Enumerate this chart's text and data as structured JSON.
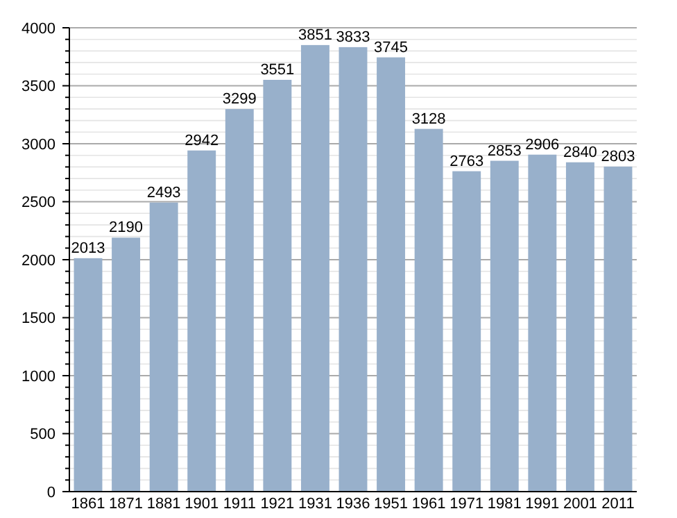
{
  "chart_data": {
    "type": "bar",
    "categories": [
      "1861",
      "1871",
      "1881",
      "1901",
      "1911",
      "1921",
      "1931",
      "1936",
      "1951",
      "1961",
      "1971",
      "1981",
      "1991",
      "2001",
      "2011"
    ],
    "values": [
      2013,
      2190,
      2493,
      2942,
      3299,
      3551,
      3851,
      3833,
      3745,
      3128,
      2763,
      2853,
      2906,
      2840,
      2803
    ],
    "color": "#98b0cb",
    "ylim": [
      0,
      4000
    ],
    "yticks": [
      0,
      {
        "value": 100,
        "label": null
      },
      {
        "value": 200,
        "label": null
      },
      {
        "value": 300,
        "label": null
      },
      {
        "value": 400,
        "label": null
      },
      500,
      {
        "value": 600,
        "label": null
      },
      {
        "value": 700,
        "label": null
      },
      {
        "value": 800,
        "label": null
      },
      {
        "value": 900,
        "label": null
      },
      1000,
      {
        "value": 1100,
        "label": null
      },
      {
        "value": 1200,
        "label": null
      },
      {
        "value": 1300,
        "label": null
      },
      {
        "value": 1400,
        "label": null
      },
      1500,
      {
        "value": 1600,
        "label": null
      },
      {
        "value": 1700,
        "label": null
      },
      {
        "value": 1800,
        "label": null
      },
      {
        "value": 1900,
        "label": null
      },
      2000,
      {
        "value": 2100,
        "label": null
      },
      {
        "value": 2200,
        "label": null
      },
      {
        "value": 2300,
        "label": null
      },
      {
        "value": 2400,
        "label": null
      },
      2500,
      {
        "value": 2600,
        "label": null
      },
      {
        "value": 2700,
        "label": null
      },
      {
        "value": 2800,
        "label": null
      },
      {
        "value": 2900,
        "label": null
      },
      3000,
      {
        "value": 3100,
        "label": null
      },
      {
        "value": 3200,
        "label": null
      },
      {
        "value": 3300,
        "label": null
      },
      {
        "value": 3400,
        "label": null
      },
      3500,
      {
        "value": 3600,
        "label": null
      },
      {
        "value": 3700,
        "label": null
      },
      {
        "value": 3800,
        "label": null
      },
      {
        "value": 3900,
        "label": null
      },
      4000
    ],
    "grid": "y",
    "data_labels": true
  }
}
